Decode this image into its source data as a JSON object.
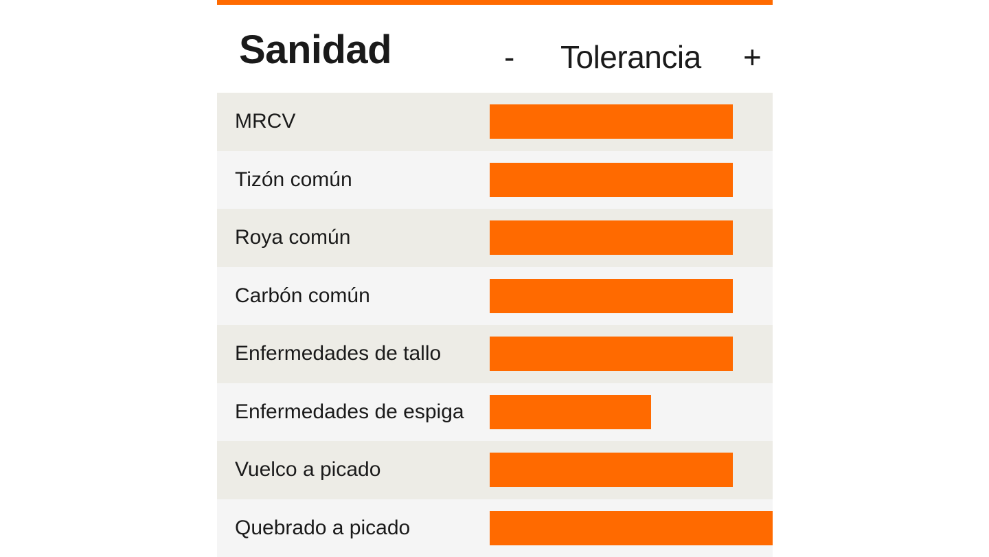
{
  "header": {
    "title": "Sanidad",
    "scale_min": "-",
    "scale_label": "Tolerancia",
    "scale_max": "+"
  },
  "colors": {
    "accent": "#ff6a00",
    "row_odd": "#edece6",
    "row_even": "#f5f5f5"
  },
  "chart_data": {
    "type": "bar",
    "orientation": "horizontal",
    "title": "Sanidad",
    "xlabel": "Tolerancia",
    "xlim": [
      0,
      100
    ],
    "categories": [
      "MRCV",
      "Tizón común",
      "Roya común",
      "Carbón común",
      "Enfermedades de tallo",
      "Enfermedades de espiga",
      "Vuelco a picado",
      "Quebrado a picado"
    ],
    "values": [
      86,
      86,
      86,
      86,
      86,
      57,
      86,
      100
    ]
  }
}
